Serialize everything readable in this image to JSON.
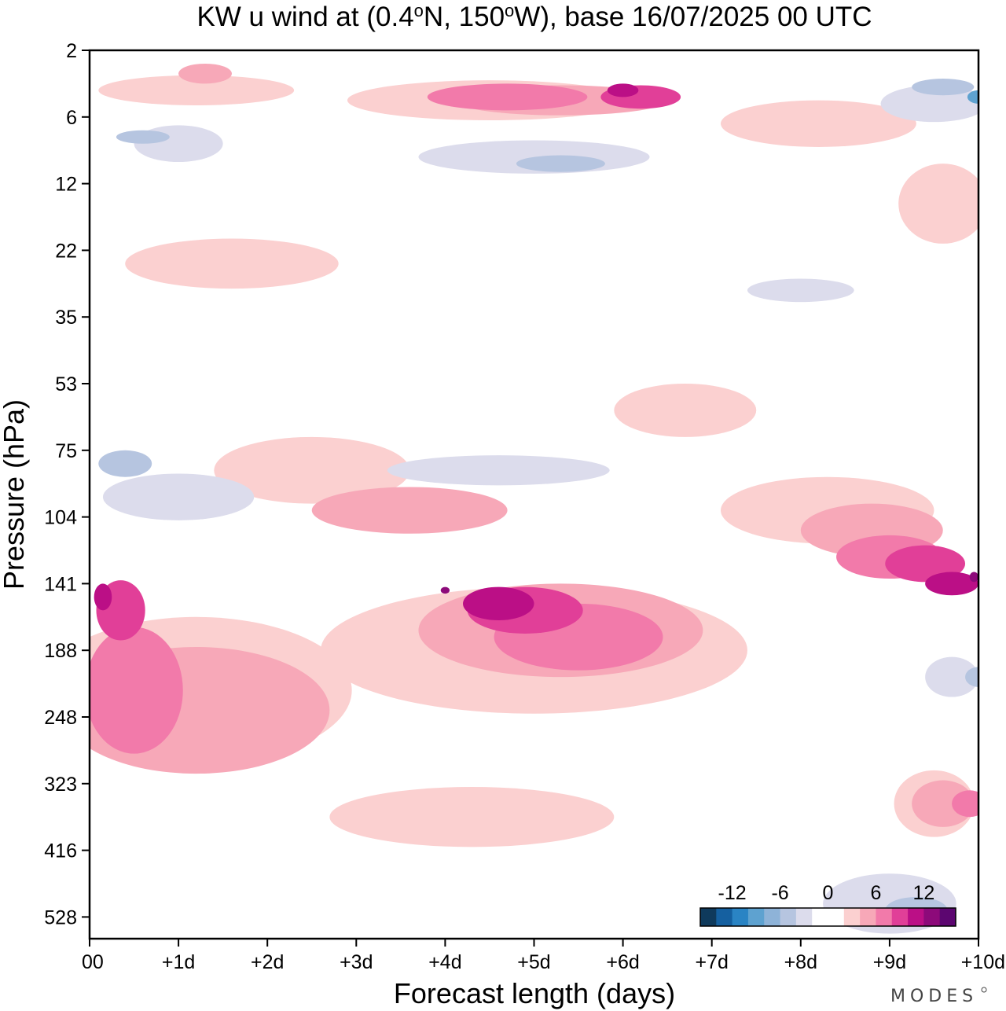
{
  "chart_data": {
    "type": "heatmap",
    "title": {
      "prefix": "KW u wind at (0.4",
      "deg1": "o",
      "mid": "N, 150",
      "deg2": "o",
      "suffix": "W),  base 16/07/2025  00 UTC"
    },
    "xlabel": "Forecast length (days)",
    "ylabel": "Pressure (hPa)",
    "x_ticks": [
      "00",
      "+1d",
      "+2d",
      "+3d",
      "+4d",
      "+5d",
      "+6d",
      "+7d",
      "+8d",
      "+9d",
      "+10d"
    ],
    "y_ticks": [
      "2",
      "6",
      "12",
      "22",
      "35",
      "53",
      "75",
      "104",
      "141",
      "188",
      "248",
      "323",
      "416",
      "528"
    ],
    "xlim": [
      0,
      10
    ],
    "colorbar": {
      "tick_labels": [
        "-12",
        "-6",
        "0",
        "6",
        "12"
      ],
      "tick_values": [
        -12,
        -6,
        0,
        6,
        12
      ],
      "range": [
        -16,
        16
      ],
      "colors": [
        "#0f3a5c",
        "#1560a0",
        "#2a84c4",
        "#5ea2d0",
        "#8eb3d8",
        "#b6c5e0",
        "#dcdcec",
        "#ffffff",
        "#ffffff",
        "#fbd0d0",
        "#f7a8b8",
        "#f27aaa",
        "#e13f98",
        "#bb0f86",
        "#8d0a7a",
        "#5c0670"
      ]
    },
    "contour_fields": [
      {
        "level": 2,
        "color": "#fbd0d0",
        "blobs": [
          {
            "day": 1.2,
            "level_index": 0.6,
            "dday": 2.2,
            "dlev": 0.45
          },
          {
            "day": 4.5,
            "level_index": 0.75,
            "dday": 3.2,
            "dlev": 0.6
          },
          {
            "day": 8.2,
            "level_index": 1.1,
            "dday": 2.2,
            "dlev": 0.7
          },
          {
            "day": 9.6,
            "level_index": 2.3,
            "dday": 1.0,
            "dlev": 1.2
          },
          {
            "day": 1.6,
            "level_index": 3.2,
            "dday": 2.4,
            "dlev": 0.75
          },
          {
            "day": 6.7,
            "level_index": 5.4,
            "dday": 1.6,
            "dlev": 0.8
          },
          {
            "day": 2.5,
            "level_index": 6.3,
            "dday": 2.2,
            "dlev": 1.0
          },
          {
            "day": 8.3,
            "level_index": 6.9,
            "dday": 2.4,
            "dlev": 1.0
          },
          {
            "day": 5.0,
            "level_index": 9.0,
            "dday": 4.8,
            "dlev": 1.9
          },
          {
            "day": 1.2,
            "level_index": 9.6,
            "dday": 3.5,
            "dlev": 2.2
          },
          {
            "day": 4.3,
            "level_index": 11.5,
            "dday": 3.2,
            "dlev": 0.9
          },
          {
            "day": 9.5,
            "level_index": 11.3,
            "dday": 0.9,
            "dlev": 1.0
          }
        ]
      },
      {
        "level": 4,
        "color": "#f7a8b8",
        "blobs": [
          {
            "day": 1.3,
            "level_index": 0.35,
            "dday": 0.6,
            "dlev": 0.3
          },
          {
            "day": 5.3,
            "level_index": 0.75,
            "dday": 2.4,
            "dlev": 0.45
          },
          {
            "day": 3.6,
            "level_index": 6.9,
            "dday": 2.2,
            "dlev": 0.7
          },
          {
            "day": 5.3,
            "level_index": 8.7,
            "dday": 3.2,
            "dlev": 1.4
          },
          {
            "day": 8.8,
            "level_index": 7.2,
            "dday": 1.6,
            "dlev": 0.8
          },
          {
            "day": 1.2,
            "level_index": 9.9,
            "dday": 3.0,
            "dlev": 1.9
          },
          {
            "day": 9.6,
            "level_index": 11.3,
            "dday": 0.7,
            "dlev": 0.7
          }
        ]
      },
      {
        "level": 6,
        "color": "#f27aaa",
        "blobs": [
          {
            "day": 4.7,
            "level_index": 0.7,
            "dday": 1.8,
            "dlev": 0.4
          },
          {
            "day": 5.5,
            "level_index": 8.8,
            "dday": 1.9,
            "dlev": 1.0
          },
          {
            "day": 9.0,
            "level_index": 7.6,
            "dday": 1.2,
            "dlev": 0.65
          },
          {
            "day": 0.5,
            "level_index": 9.6,
            "dday": 1.1,
            "dlev": 1.9
          },
          {
            "day": 9.9,
            "level_index": 11.3,
            "dday": 0.4,
            "dlev": 0.4
          }
        ]
      },
      {
        "level": 8,
        "color": "#e13f98",
        "blobs": [
          {
            "day": 6.2,
            "level_index": 0.7,
            "dday": 0.9,
            "dlev": 0.35
          },
          {
            "day": 4.9,
            "level_index": 8.4,
            "dday": 1.3,
            "dlev": 0.7
          },
          {
            "day": 9.4,
            "level_index": 7.7,
            "dday": 0.9,
            "dlev": 0.55
          },
          {
            "day": 0.35,
            "level_index": 8.4,
            "dday": 0.55,
            "dlev": 0.9
          }
        ]
      },
      {
        "level": 10,
        "color": "#bb0f86",
        "blobs": [
          {
            "day": 6.0,
            "level_index": 0.6,
            "dday": 0.35,
            "dlev": 0.2
          },
          {
            "day": 4.6,
            "level_index": 8.3,
            "dday": 0.8,
            "dlev": 0.5
          },
          {
            "day": 9.7,
            "level_index": 8.0,
            "dday": 0.6,
            "dlev": 0.35
          },
          {
            "day": 0.15,
            "level_index": 8.2,
            "dday": 0.2,
            "dlev": 0.4
          }
        ]
      },
      {
        "level": 12,
        "color": "#8d0a7a",
        "blobs": [
          {
            "day": 4.0,
            "level_index": 8.1,
            "dday": 0.1,
            "dlev": 0.1
          },
          {
            "day": 9.95,
            "level_index": 7.9,
            "dday": 0.1,
            "dlev": 0.15
          }
        ]
      },
      {
        "level": -2,
        "color": "#dcdcec",
        "blobs": [
          {
            "day": 1.0,
            "level_index": 1.4,
            "dday": 1.0,
            "dlev": 0.55
          },
          {
            "day": 5.0,
            "level_index": 1.6,
            "dday": 2.6,
            "dlev": 0.5
          },
          {
            "day": 9.5,
            "level_index": 0.8,
            "dday": 1.2,
            "dlev": 0.55
          },
          {
            "day": 8.0,
            "level_index": 3.6,
            "dday": 1.2,
            "dlev": 0.35
          },
          {
            "day": 4.6,
            "level_index": 6.3,
            "dday": 2.5,
            "dlev": 0.45
          },
          {
            "day": 1.0,
            "level_index": 6.7,
            "dday": 1.7,
            "dlev": 0.7
          },
          {
            "day": 9.0,
            "level_index": 12.8,
            "dday": 1.5,
            "dlev": 0.9
          },
          {
            "day": 9.7,
            "level_index": 9.4,
            "dday": 0.6,
            "dlev": 0.6
          }
        ]
      },
      {
        "level": -4,
        "color": "#b6c5e0",
        "blobs": [
          {
            "day": 0.6,
            "level_index": 1.3,
            "dday": 0.6,
            "dlev": 0.2
          },
          {
            "day": 5.3,
            "level_index": 1.7,
            "dday": 1.0,
            "dlev": 0.25
          },
          {
            "day": 9.6,
            "level_index": 0.55,
            "dday": 0.7,
            "dlev": 0.25
          },
          {
            "day": 0.4,
            "level_index": 6.2,
            "dday": 0.6,
            "dlev": 0.4
          },
          {
            "day": 9.3,
            "level_index": 12.9,
            "dday": 0.7,
            "dlev": 0.4
          },
          {
            "day": 10.0,
            "level_index": 9.4,
            "dday": 0.3,
            "dlev": 0.3
          }
        ]
      },
      {
        "level": -6,
        "color": "#5ea2d0",
        "blobs": [
          {
            "day": 10.0,
            "level_index": 0.7,
            "dday": 0.25,
            "dlev": 0.2
          }
        ]
      }
    ]
  },
  "watermark": "MODES"
}
